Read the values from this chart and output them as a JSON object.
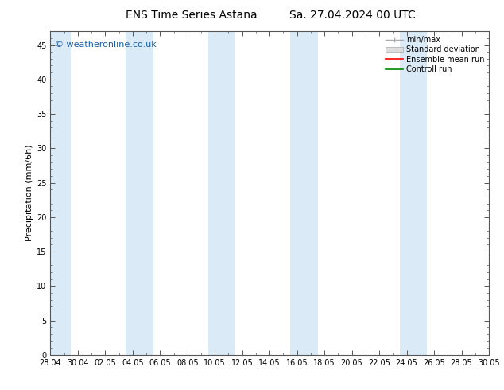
{
  "title_left": "ENS Time Series Astana",
  "title_right": "Sa. 27.04.2024 00 UTC",
  "ylabel": "Precipitation (mm/6h)",
  "watermark": "© weatheronline.co.uk",
  "xlim_start": 0,
  "xlim_end": 32,
  "ylim": [
    0,
    47
  ],
  "yticks": [
    0,
    5,
    10,
    15,
    20,
    25,
    30,
    35,
    40,
    45
  ],
  "xtick_labels": [
    "28.04",
    "30.04",
    "02.05",
    "04.05",
    "06.05",
    "08.05",
    "10.05",
    "12.05",
    "14.05",
    "16.05",
    "18.05",
    "20.05",
    "22.05",
    "24.05",
    "26.05",
    "28.05",
    "30.05"
  ],
  "xtick_positions": [
    0,
    2,
    4,
    6,
    8,
    10,
    12,
    14,
    16,
    18,
    20,
    22,
    24,
    26,
    28,
    30,
    32
  ],
  "shaded_bands": [
    [
      0,
      1.5
    ],
    [
      5.5,
      7.5
    ],
    [
      11.5,
      13.5
    ],
    [
      17.5,
      19.5
    ],
    [
      25.5,
      27.5
    ]
  ],
  "band_color": "#daeaf7",
  "bg_color": "#ffffff",
  "legend_items": [
    {
      "label": "min/max",
      "color": "#aaaaaa"
    },
    {
      "label": "Standard deviation",
      "color": "#cccccc"
    },
    {
      "label": "Ensemble mean run",
      "color": "#ff0000"
    },
    {
      "label": "Controll run",
      "color": "#008800"
    }
  ],
  "title_fontsize": 10,
  "tick_fontsize": 7,
  "ylabel_fontsize": 8,
  "watermark_fontsize": 8,
  "legend_fontsize": 7
}
